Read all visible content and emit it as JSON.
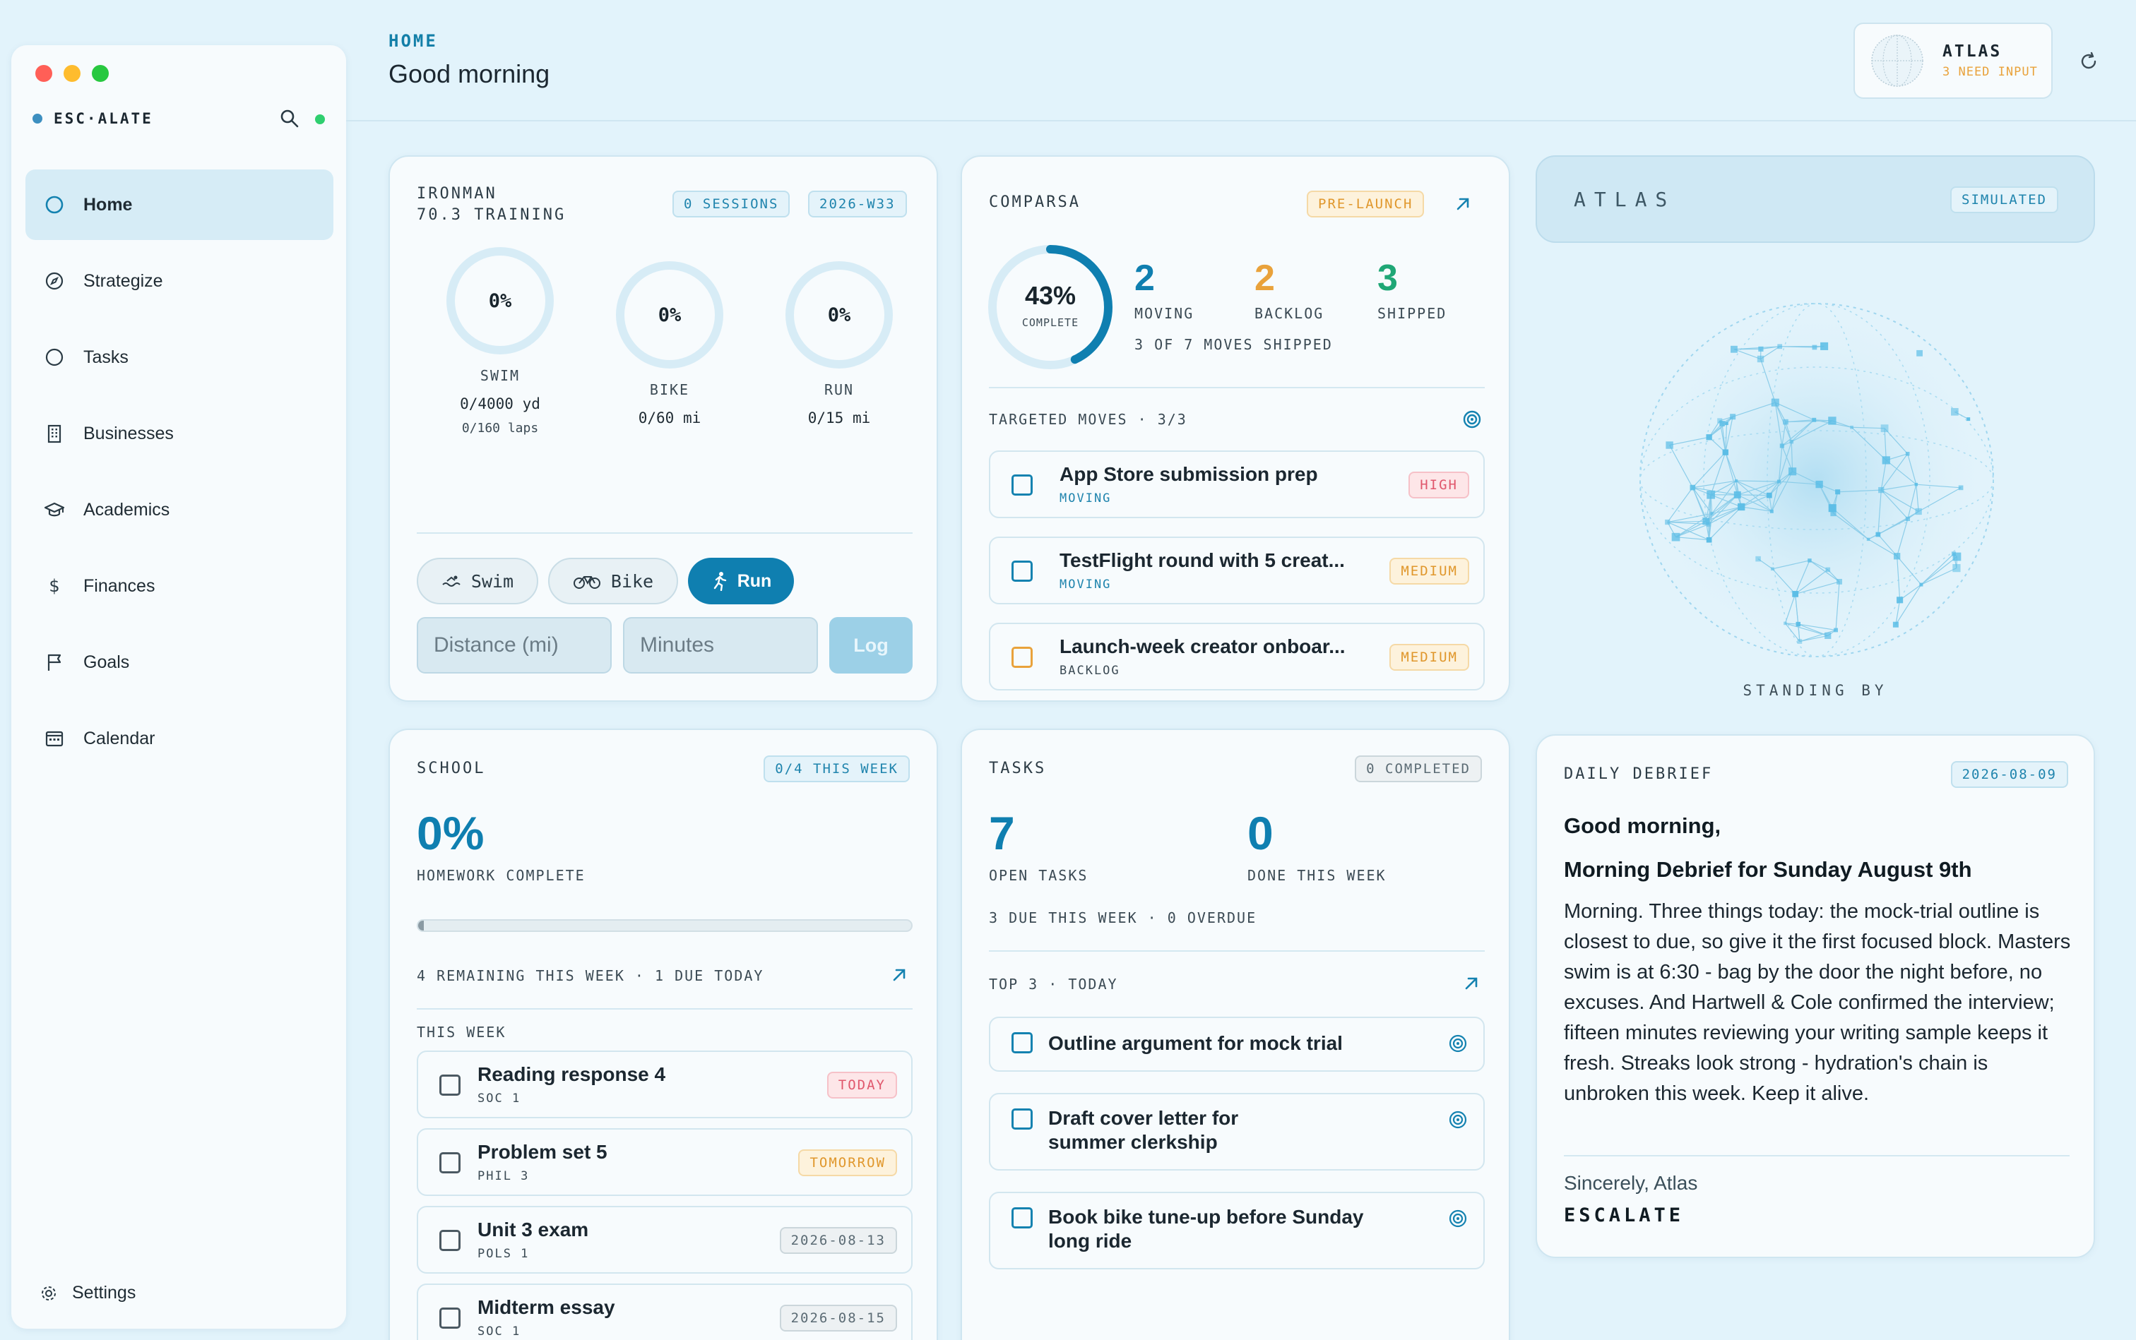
{
  "window": {
    "brand": "ESC·ALATE"
  },
  "sidebar": {
    "items": [
      {
        "label": "Home",
        "icon": "circle-icon",
        "active": true
      },
      {
        "label": "Strategize",
        "icon": "compass-icon"
      },
      {
        "label": "Tasks",
        "icon": "circle-icon"
      },
      {
        "label": "Businesses",
        "icon": "building-icon"
      },
      {
        "label": "Academics",
        "icon": "graduation-cap-icon"
      },
      {
        "label": "Finances",
        "icon": "dollar-icon"
      },
      {
        "label": "Goals",
        "icon": "flag-icon"
      },
      {
        "label": "Calendar",
        "icon": "calendar-icon"
      }
    ],
    "settings_label": "Settings"
  },
  "header": {
    "breadcrumb": "HOME",
    "greeting": "Good morning",
    "atlas_title": "ATLAS",
    "atlas_status": "3 NEED INPUT"
  },
  "ironman": {
    "title_line1": "IRONMAN",
    "title_line2": "70.3 TRAINING",
    "sessions_badge": "0 SESSIONS",
    "week_badge": "2026-W33",
    "rings": [
      {
        "pct_label": "0%",
        "progress": 0,
        "label": "SWIM",
        "sub": "0/4000 yd",
        "sub2": "0/160 laps"
      },
      {
        "pct_label": "0%",
        "progress": 0,
        "label": "BIKE",
        "sub": "0/60 mi"
      },
      {
        "pct_label": "0%",
        "progress": 0,
        "label": "RUN",
        "sub": "0/15 mi"
      }
    ],
    "segments": {
      "swim": "Swim",
      "bike": "Bike",
      "run": "Run",
      "selected": "Run"
    },
    "distance_placeholder": "Distance (mi)",
    "minutes_placeholder": "Minutes",
    "log_label": "Log"
  },
  "comparsa": {
    "title": "COMPARSA",
    "badge": "PRE-LAUNCH",
    "complete_pct": "43%",
    "complete_progress": 0.43,
    "complete_label": "COMPLETE",
    "moving_value": "2",
    "moving_label": "MOVING",
    "backlog_value": "2",
    "backlog_label": "BACKLOG",
    "shipped_value": "3",
    "shipped_label": "SHIPPED",
    "summary": "3 OF 7 MOVES SHIPPED",
    "targeted_label": "TARGETED MOVES · 3/3",
    "moves": [
      {
        "title": "App Store submission prep",
        "status": "MOVING",
        "priority": "HIGH"
      },
      {
        "title": "TestFlight round with 5 creat...",
        "status": "MOVING",
        "priority": "MEDIUM"
      },
      {
        "title": "Launch-week creator onboar...",
        "status": "BACKLOG",
        "priority": "MEDIUM"
      }
    ]
  },
  "atlas": {
    "title": "ATLAS",
    "badge": "SIMULATED",
    "status": "STANDING BY"
  },
  "school": {
    "title": "SCHOOL",
    "badge": "0/4 THIS WEEK",
    "pct": "0%",
    "pct_label": "HOMEWORK COMPLETE",
    "progress": 0,
    "remaining": "4 REMAINING THIS WEEK · 1 DUE TODAY",
    "this_week_label": "THIS WEEK",
    "items": [
      {
        "title": "Reading response 4",
        "course": "SOC 1",
        "due": "TODAY"
      },
      {
        "title": "Problem set 5",
        "course": "PHIL 3",
        "due": "TOMORROW"
      },
      {
        "title": "Unit 3 exam",
        "course": "POLS 1",
        "due": "2026-08-13"
      },
      {
        "title": "Midterm essay",
        "course": "SOC 1",
        "due": "2026-08-15"
      }
    ]
  },
  "tasks": {
    "title": "TASKS",
    "badge": "0 COMPLETED",
    "open_value": "7",
    "open_label": "OPEN TASKS",
    "done_value": "0",
    "done_label": "DONE THIS WEEK",
    "summary": "3 DUE THIS WEEK · 0 OVERDUE",
    "top_label": "TOP 3 · TODAY",
    "items": [
      {
        "line1": "Outline argument for mock trial",
        "line2": ""
      },
      {
        "line1": "Draft cover letter for",
        "line2": "summer clerkship"
      },
      {
        "line1": "Book bike tune-up before Sunday",
        "line2": "long ride"
      }
    ]
  },
  "debrief": {
    "title": "DAILY DEBRIEF",
    "date": "2026-08-09",
    "heading": "Good morning,",
    "subheading": "Morning Debrief for Sunday August 9th",
    "body": "Morning. Three things today: the mock-trial outline is closest to due, so give it the first focused block. Masters swim is at 6:30 - bag by the door the night before, no excuses. And Hartwell & Cole confirmed the interview; fifteen minutes reviewing your writing sample keeps it fresh. Streaks look strong - hydration's chain is unbroken this week. Keep it alive.",
    "signoff": "Sincerely, Atlas",
    "brand": "ESCALATE"
  },
  "colors": {
    "accent": "#0f7fb0",
    "orange": "#e9a23b",
    "green": "#1fa776",
    "red": "#e0576c",
    "background": "#e2f3fb"
  }
}
